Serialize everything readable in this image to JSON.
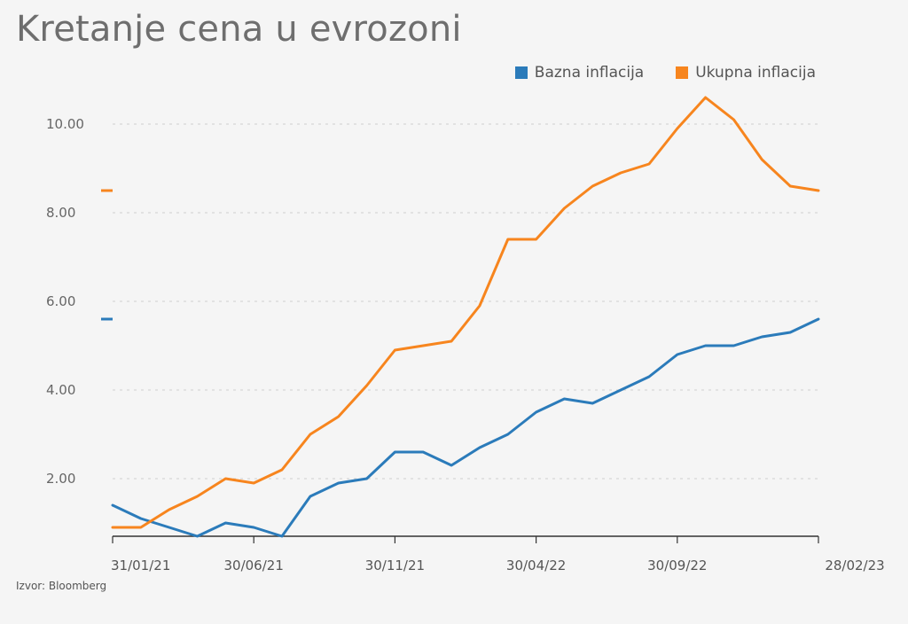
{
  "page": {
    "title": "Kretanje cena u evrozoni",
    "source": "Izvor: Bloomberg"
  },
  "colors": {
    "bazna": "#2b7bba",
    "ukupna": "#f7851e",
    "grid": "#d6d6d6",
    "axis": "#333333"
  },
  "chart_data": {
    "type": "line",
    "title": "Kretanje cena u evrozoni",
    "legend_position": "top-right",
    "grid": true,
    "ylim": [
      0.7,
      10.8
    ],
    "y_ticks": [
      "2.00",
      "4.00",
      "6.00",
      "8.00",
      "10.00"
    ],
    "y_tick_values": [
      2,
      4,
      6,
      8,
      10
    ],
    "x_tick_labels": [
      "31/01/21",
      "30/06/21",
      "30/11/21",
      "30/04/22",
      "30/09/22",
      "28/02/23"
    ],
    "x_tick_index": [
      0,
      5,
      10,
      15,
      20,
      25
    ],
    "series": [
      {
        "name": "Bazna inflacija",
        "color": "#2b7bba",
        "last_value_marker": 5.6,
        "values": [
          1.4,
          1.1,
          0.9,
          0.7,
          1.0,
          0.9,
          0.7,
          1.6,
          1.9,
          2.0,
          2.6,
          2.6,
          2.3,
          2.7,
          3.0,
          3.5,
          3.8,
          3.7,
          4.0,
          4.3,
          4.8,
          5.0,
          5.0,
          5.2,
          5.3,
          5.6
        ]
      },
      {
        "name": "Ukupna inflacija",
        "color": "#f7851e",
        "last_value_marker": 8.5,
        "values": [
          0.9,
          0.9,
          1.3,
          1.6,
          2.0,
          1.9,
          2.2,
          3.0,
          3.4,
          4.1,
          4.9,
          5.0,
          5.1,
          5.9,
          7.4,
          7.4,
          8.1,
          8.6,
          8.9,
          9.1,
          9.9,
          10.6,
          10.1,
          9.2,
          8.6,
          8.5
        ]
      }
    ]
  }
}
